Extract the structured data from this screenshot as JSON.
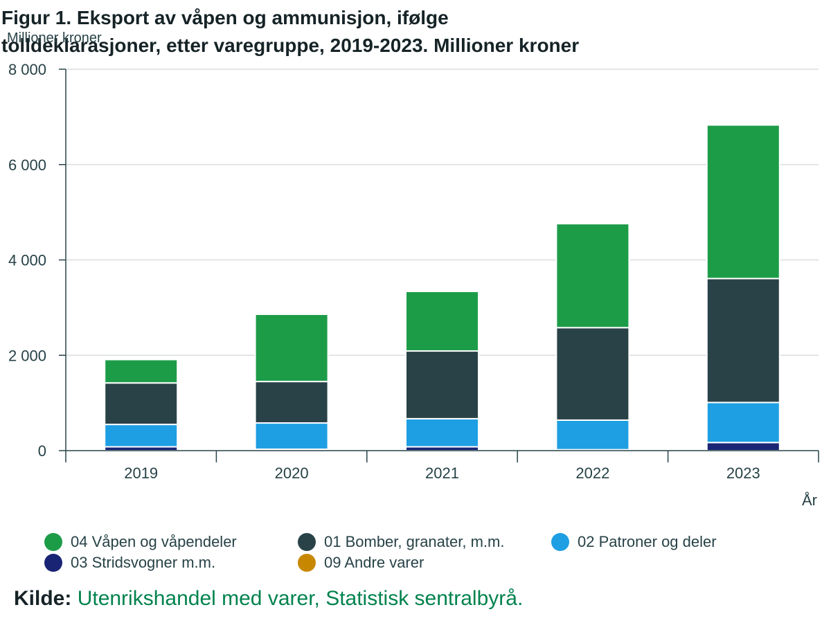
{
  "chart_data": {
    "type": "bar",
    "stacked": true,
    "title": "Figur 1. Eksport av våpen og ammunisjon, ifølge tolldeklarasjoner, etter varegruppe, 2019-2023. Millioner kroner",
    "ylabel": "Millioner kroner",
    "xlabel": "År",
    "categories": [
      "2019",
      "2020",
      "2021",
      "2022",
      "2023"
    ],
    "ylim": [
      0,
      8000
    ],
    "yticks": [
      0,
      2000,
      4000,
      6000,
      8000
    ],
    "ytick_labels": [
      "0",
      "2 000",
      "4 000",
      "6 000",
      "8 000"
    ],
    "grid": true,
    "legend_position": "bottom",
    "series": [
      {
        "name": "03 Stridsvogner m.m.",
        "color": "#1a2474",
        "values": [
          80,
          30,
          80,
          20,
          170
        ]
      },
      {
        "name": "02 Patroner og deler",
        "color": "#1e9fe3",
        "values": [
          470,
          550,
          590,
          620,
          840
        ]
      },
      {
        "name": "01 Bomber, granater, m.m.",
        "color": "#294248",
        "values": [
          870,
          870,
          1420,
          1940,
          2600
        ]
      },
      {
        "name": "04 Våpen og våpendeler",
        "color": "#1d9c48",
        "values": [
          490,
          1410,
          1250,
          2180,
          3220
        ]
      },
      {
        "name": "09 Andre varer",
        "color": "#c78800",
        "values": [
          0,
          0,
          0,
          0,
          0
        ]
      }
    ]
  },
  "legend": [
    {
      "label": "04 Våpen og våpendeler",
      "color": "#1d9c48"
    },
    {
      "label": "01 Bomber, granater, m.m.",
      "color": "#294248"
    },
    {
      "label": "02 Patroner og deler",
      "color": "#1e9fe3"
    },
    {
      "label": "03 Stridsvogner m.m.",
      "color": "#1a2474"
    },
    {
      "label": "09 Andre varer",
      "color": "#c78800"
    }
  ],
  "source": {
    "label": "Kilde:",
    "text": "Utenrikshandel med varer, Statistisk sentralbyrå."
  }
}
